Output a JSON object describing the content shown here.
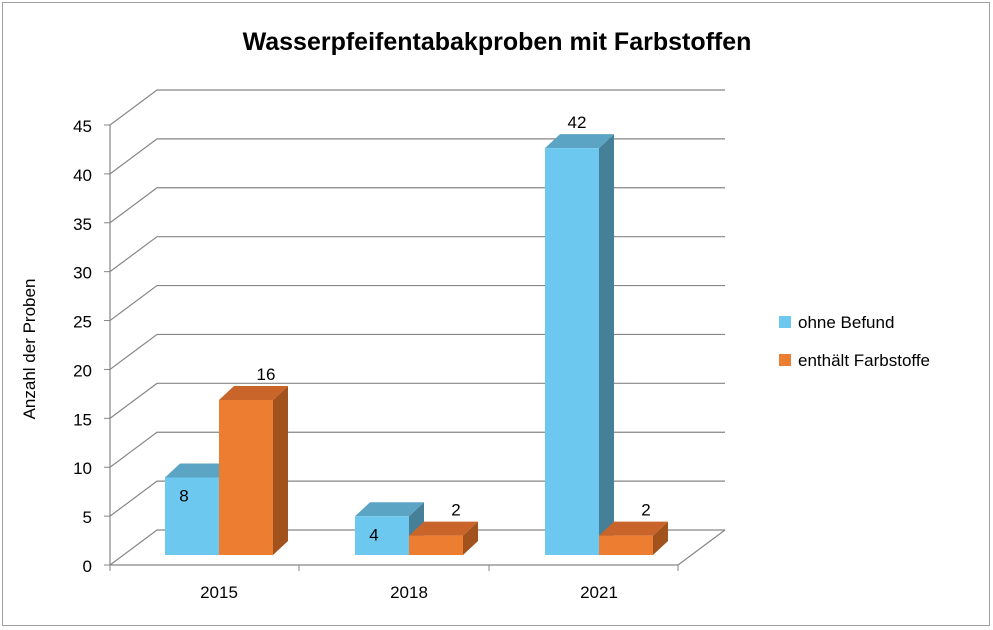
{
  "chart_data": {
    "type": "bar",
    "title": "Wasserpfeifentabakproben mit Farbstoffen",
    "xlabel": "",
    "ylabel": "Anzahl der Proben",
    "ylim": [
      0,
      45
    ],
    "yticks": [
      "0",
      "5",
      "10",
      "15",
      "20",
      "25",
      "30",
      "35",
      "40",
      "45"
    ],
    "categories": [
      "2015",
      "2018",
      "2021"
    ],
    "series": [
      {
        "name": "ohne Befund",
        "values": [
          8,
          4,
          42
        ],
        "color": "#6DC8F0",
        "side": "#467F98",
        "top": "#5CA4C4"
      },
      {
        "name": "enthält Farbstoffe",
        "values": [
          16,
          2,
          2
        ],
        "color": "#ED7D31",
        "side": "#A1521D",
        "top": "#C9652A"
      }
    ],
    "grid": true,
    "legend": "right",
    "style": "3d-clustered-column"
  }
}
